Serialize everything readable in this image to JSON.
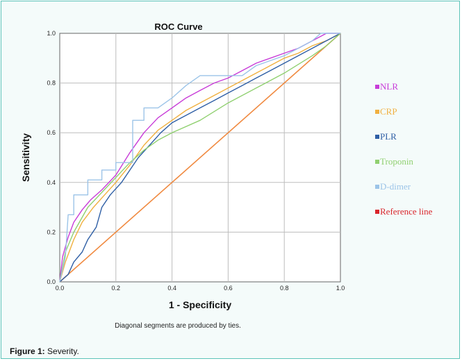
{
  "figure": {
    "caption_label": "Figure 1:",
    "caption_text": "Severity."
  },
  "chart_data": {
    "type": "line",
    "title": "ROC Curve",
    "xlabel": "1 - Specificity",
    "ylabel": "Sensitivity",
    "xlim": [
      0,
      1
    ],
    "ylim": [
      0,
      1
    ],
    "xticks": [
      "0.0",
      "0.2",
      "0.4",
      "0.6",
      "0.8",
      "1.0"
    ],
    "yticks": [
      "0.0",
      "0.2",
      "0.4",
      "0.6",
      "0.8",
      "1.0"
    ],
    "grid": true,
    "legend_position": "right",
    "footnote": "Diagonal segments are produced by ties.",
    "series": [
      {
        "name": "NLR",
        "color": "#c83cd8",
        "points": [
          [
            0,
            0
          ],
          [
            0.01,
            0.1
          ],
          [
            0.03,
            0.18
          ],
          [
            0.05,
            0.24
          ],
          [
            0.08,
            0.29
          ],
          [
            0.11,
            0.33
          ],
          [
            0.15,
            0.37
          ],
          [
            0.2,
            0.43
          ],
          [
            0.25,
            0.52
          ],
          [
            0.3,
            0.6
          ],
          [
            0.35,
            0.66
          ],
          [
            0.4,
            0.7
          ],
          [
            0.45,
            0.74
          ],
          [
            0.5,
            0.77
          ],
          [
            0.55,
            0.8
          ],
          [
            0.6,
            0.82
          ],
          [
            0.65,
            0.85
          ],
          [
            0.7,
            0.88
          ],
          [
            0.75,
            0.9
          ],
          [
            0.8,
            0.92
          ],
          [
            0.85,
            0.94
          ],
          [
            0.9,
            0.97
          ],
          [
            0.95,
            1
          ],
          [
            1,
            1
          ]
        ]
      },
      {
        "name": "CRP",
        "color": "#f0b040",
        "points": [
          [
            0,
            0
          ],
          [
            0.02,
            0.08
          ],
          [
            0.05,
            0.17
          ],
          [
            0.08,
            0.24
          ],
          [
            0.12,
            0.3
          ],
          [
            0.16,
            0.35
          ],
          [
            0.2,
            0.4
          ],
          [
            0.25,
            0.47
          ],
          [
            0.3,
            0.55
          ],
          [
            0.35,
            0.61
          ],
          [
            0.4,
            0.65
          ],
          [
            0.45,
            0.69
          ],
          [
            0.5,
            0.72
          ],
          [
            0.55,
            0.75
          ],
          [
            0.6,
            0.78
          ],
          [
            0.65,
            0.81
          ],
          [
            0.7,
            0.84
          ],
          [
            0.75,
            0.87
          ],
          [
            0.8,
            0.9
          ],
          [
            0.85,
            0.92
          ],
          [
            0.9,
            0.95
          ],
          [
            0.95,
            0.97
          ],
          [
            1,
            1
          ]
        ]
      },
      {
        "name": "PLR",
        "color": "#2f5fa5",
        "points": [
          [
            0,
            0
          ],
          [
            0.03,
            0.03
          ],
          [
            0.05,
            0.08
          ],
          [
            0.08,
            0.12
          ],
          [
            0.1,
            0.17
          ],
          [
            0.13,
            0.22
          ],
          [
            0.15,
            0.3
          ],
          [
            0.18,
            0.35
          ],
          [
            0.22,
            0.4
          ],
          [
            0.25,
            0.45
          ],
          [
            0.28,
            0.5
          ],
          [
            0.32,
            0.55
          ],
          [
            0.36,
            0.6
          ],
          [
            0.4,
            0.64
          ],
          [
            0.45,
            0.67
          ],
          [
            0.5,
            0.7
          ],
          [
            0.55,
            0.73
          ],
          [
            0.6,
            0.76
          ],
          [
            0.65,
            0.79
          ],
          [
            0.7,
            0.82
          ],
          [
            0.75,
            0.85
          ],
          [
            0.8,
            0.88
          ],
          [
            0.85,
            0.91
          ],
          [
            0.9,
            0.94
          ],
          [
            0.95,
            0.97
          ],
          [
            1,
            1
          ]
        ]
      },
      {
        "name": "Troponin",
        "color": "#90d070",
        "points": [
          [
            0,
            0
          ],
          [
            0.02,
            0.12
          ],
          [
            0.05,
            0.2
          ],
          [
            0.1,
            0.3
          ],
          [
            0.15,
            0.36
          ],
          [
            0.2,
            0.42
          ],
          [
            0.25,
            0.48
          ],
          [
            0.3,
            0.53
          ],
          [
            0.35,
            0.57
          ],
          [
            0.4,
            0.6
          ],
          [
            0.5,
            0.65
          ],
          [
            0.6,
            0.72
          ],
          [
            0.7,
            0.78
          ],
          [
            0.8,
            0.84
          ],
          [
            0.9,
            0.91
          ],
          [
            0.95,
            0.95
          ],
          [
            1,
            1
          ]
        ]
      },
      {
        "name": "D-dimer",
        "color": "#9cc4e8",
        "points": [
          [
            0,
            0
          ],
          [
            0.02,
            0.1
          ],
          [
            0.03,
            0.27
          ],
          [
            0.05,
            0.27
          ],
          [
            0.05,
            0.35
          ],
          [
            0.1,
            0.35
          ],
          [
            0.1,
            0.41
          ],
          [
            0.15,
            0.41
          ],
          [
            0.15,
            0.45
          ],
          [
            0.2,
            0.45
          ],
          [
            0.2,
            0.48
          ],
          [
            0.26,
            0.48
          ],
          [
            0.26,
            0.65
          ],
          [
            0.3,
            0.65
          ],
          [
            0.3,
            0.7
          ],
          [
            0.35,
            0.7
          ],
          [
            0.4,
            0.74
          ],
          [
            0.45,
            0.79
          ],
          [
            0.5,
            0.83
          ],
          [
            0.65,
            0.83
          ],
          [
            0.7,
            0.87
          ],
          [
            0.8,
            0.91
          ],
          [
            0.85,
            0.94
          ],
          [
            0.9,
            0.97
          ],
          [
            0.93,
            1
          ],
          [
            1,
            1
          ]
        ]
      },
      {
        "name": "Reference line",
        "color": "#f08a40",
        "legend_color": "#d9252b",
        "points": [
          [
            0,
            0
          ],
          [
            1,
            1
          ]
        ]
      }
    ]
  }
}
